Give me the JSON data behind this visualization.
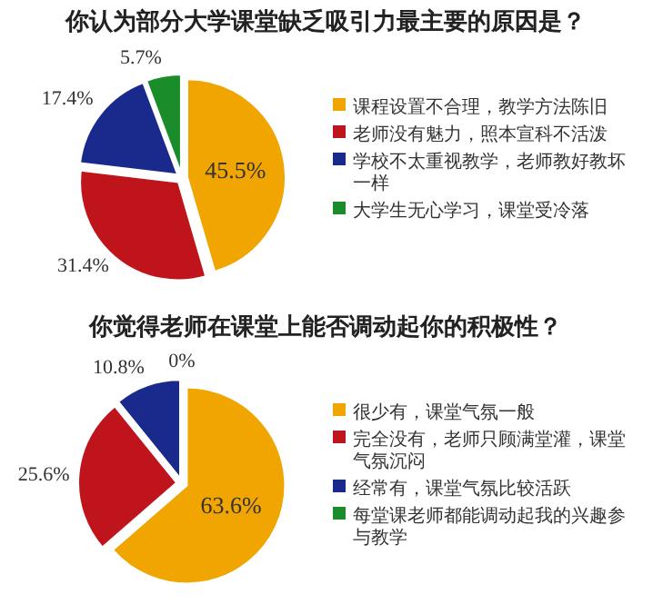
{
  "chart_data": [
    {
      "type": "pie",
      "title": "你认为部分大学课堂缺乏吸引力最主要的原因是？",
      "categories": [
        "课程设置不合理，教学方法陈旧",
        "老师没有魅力，照本宣科不活泼",
        "学校不太重视教学，老师教好教坏一样",
        "大学生无心学习，课堂受冷落"
      ],
      "values": [
        45.5,
        31.4,
        17.4,
        5.7
      ],
      "colors": [
        "#f0a500",
        "#c0141c",
        "#1a2a8c",
        "#1a8c2a"
      ],
      "value_labels": [
        "45.5%",
        "31.4%",
        "17.4%",
        "5.7%"
      ],
      "legend": "right"
    },
    {
      "type": "pie",
      "title": "你觉得老师在课堂上能否调动起你的积极性？",
      "categories": [
        "很少有，课堂气氛一般",
        "完全没有，老师只顾满堂灌，课堂气氛沉闷",
        "经常有，课堂气氛比较活跃",
        "每堂课老师都能调动起我的兴趣参与教学"
      ],
      "values": [
        63.6,
        25.6,
        10.8,
        0
      ],
      "colors": [
        "#f0a500",
        "#c0141c",
        "#1a2a8c",
        "#1a8c2a"
      ],
      "value_labels": [
        "63.6%",
        "25.6%",
        "10.8%",
        "0%"
      ],
      "legend": "right"
    }
  ]
}
